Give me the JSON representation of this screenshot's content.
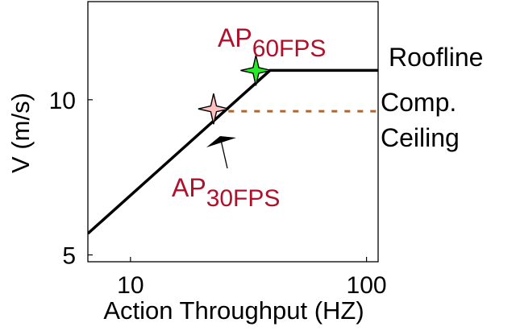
{
  "chart_data": {
    "type": "line",
    "title": "",
    "xlabel": "Action Throughput (HZ)",
    "ylabel": "V (m/s)",
    "x_scale": "log",
    "y_scale": "log",
    "xlim": [
      6.6,
      112
    ],
    "ylim": [
      4.85,
      15.5
    ],
    "x_ticks": [
      10,
      100
    ],
    "x_tick_labels": [
      "10",
      "100"
    ],
    "y_ticks": [
      5,
      10
    ],
    "y_tick_labels": [
      "5",
      "10"
    ],
    "grid": false,
    "series": [
      {
        "name": "Roofline",
        "style": "solid",
        "color": "#000000",
        "x": [
          6.6,
          39,
          112
        ],
        "y": [
          5.5,
          11.4,
          11.4
        ]
      },
      {
        "name": "Comp. Ceiling",
        "style": "dotted",
        "color": "#c0601a",
        "x": [
          26,
          112
        ],
        "y": [
          9.5,
          9.5
        ]
      }
    ],
    "points": [
      {
        "name": "AP",
        "subscript": "60FPS",
        "x": 34,
        "y": 11.4,
        "color": "#22ee22",
        "marker": "star4"
      },
      {
        "name": "AP",
        "subscript": "30FPS",
        "x": 22.5,
        "y": 9.6,
        "color": "#ffc0c0",
        "marker": "star4"
      }
    ],
    "annotations": [
      {
        "text": "Roofline"
      },
      {
        "text": "Comp."
      },
      {
        "text": "Ceiling"
      }
    ]
  }
}
